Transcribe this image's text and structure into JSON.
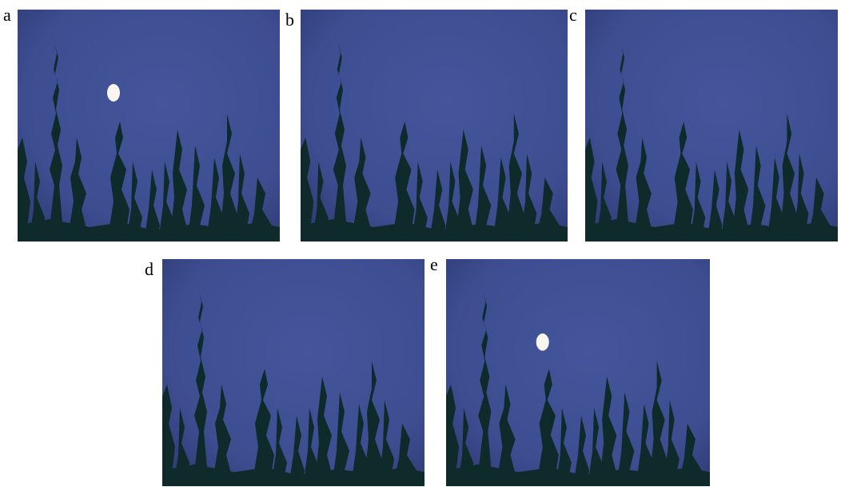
{
  "figure": {
    "panels": [
      {
        "id": "a",
        "label": "a",
        "moon": true
      },
      {
        "id": "b",
        "label": "b",
        "moon": false
      },
      {
        "id": "c",
        "label": "c",
        "moon": false
      },
      {
        "id": "d",
        "label": "d",
        "moon": false
      },
      {
        "id": "e",
        "label": "e",
        "moon": true
      }
    ],
    "colors": {
      "sky": "#3f4f94",
      "sky_edge": "#2e3a73",
      "trees": "#0f2a2a",
      "moon": "#f8f6ee"
    }
  }
}
